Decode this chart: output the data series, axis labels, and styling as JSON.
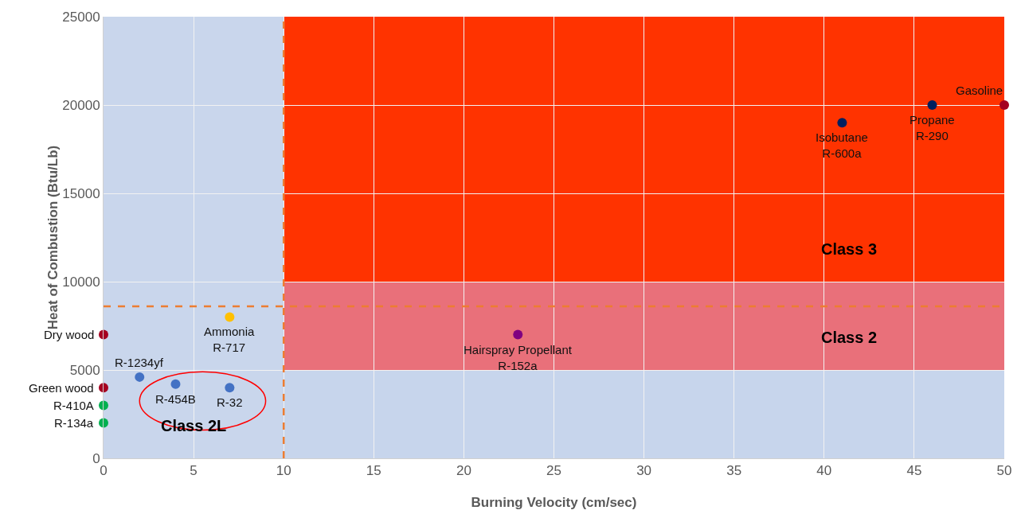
{
  "chart_data": {
    "type": "scatter",
    "xlabel": "Burning Velocity (cm/sec)",
    "ylabel": "Heat of Combustion (Btu/Lb)",
    "xlim": [
      0,
      50
    ],
    "xticks": [
      0,
      5,
      10,
      15,
      20,
      25,
      30,
      35,
      40,
      45,
      50
    ],
    "ylim": [
      0,
      25000
    ],
    "yticks": [
      0,
      5000,
      10000,
      15000,
      20000,
      25000
    ],
    "grid": true,
    "marker": "circle",
    "series": [
      {
        "color": "#a50021",
        "x": [
          0,
          0,
          50
        ],
        "values": [
          7000,
          4000,
          20000
        ]
      },
      {
        "color": "#00b050",
        "x": [
          0,
          0
        ],
        "values": [
          3000,
          2000
        ]
      },
      {
        "color": "#ffc000",
        "x": [
          7
        ],
        "values": [
          8000
        ]
      },
      {
        "color": "#4472c4",
        "x": [
          2,
          4,
          7
        ],
        "values": [
          4600,
          4200,
          4000
        ]
      },
      {
        "color": "#800080",
        "x": [
          23
        ],
        "values": [
          7000
        ]
      },
      {
        "color": "#002060",
        "x": [
          41,
          46
        ],
        "values": [
          19000,
          20000
        ]
      }
    ],
    "bands": [
      {
        "axis": "y",
        "from": 10000,
        "to": 25000,
        "label": "Class 3",
        "color": "#ff3300"
      },
      {
        "axis": "y",
        "from": 5000,
        "to": 10000,
        "label": "Class 2",
        "color": "#e9707a"
      },
      {
        "axis": "y",
        "from": 0,
        "to": 5000,
        "color": "#c7d5ec"
      },
      {
        "axis": "x",
        "from": 0,
        "to": 10,
        "label": "Class 2L",
        "color": "#c9d6ec"
      }
    ],
    "ref_lines": [
      {
        "axis": "x",
        "value": 10,
        "color": "#ed7d31",
        "line_style": "dashed"
      },
      {
        "axis": "y",
        "value": 8600,
        "color": "#ed7d31",
        "line_style": "dashed"
      }
    ],
    "annotations": [
      {
        "text": "Dry wood",
        "x": 0,
        "y": 7000
      },
      {
        "text": "Green wood",
        "x": 0,
        "y": 4000
      },
      {
        "text": "R-410A",
        "x": 0,
        "y": 3000
      },
      {
        "text": "R-134a",
        "x": 0,
        "y": 2000
      },
      {
        "text": "Ammonia\nR-717",
        "x": 7,
        "y": 8000
      },
      {
        "text": "R-1234yf",
        "x": 2,
        "y": 4600
      },
      {
        "text": "R-454B",
        "x": 4,
        "y": 4200
      },
      {
        "text": "R-32",
        "x": 7,
        "y": 4000
      },
      {
        "text": "Hairspray Propellant\nR-152a",
        "x": 23,
        "y": 7000
      },
      {
        "text": "Isobutane\nR-600a",
        "x": 41,
        "y": 19000
      },
      {
        "text": "Propane\nR-290",
        "x": 46,
        "y": 20000
      },
      {
        "text": "Gasoline",
        "x": 50,
        "y": 20000
      }
    ]
  }
}
